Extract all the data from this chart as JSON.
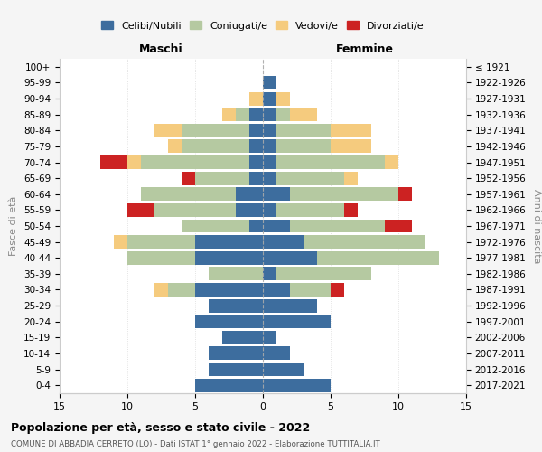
{
  "age_groups": [
    "0-4",
    "5-9",
    "10-14",
    "15-19",
    "20-24",
    "25-29",
    "30-34",
    "35-39",
    "40-44",
    "45-49",
    "50-54",
    "55-59",
    "60-64",
    "65-69",
    "70-74",
    "75-79",
    "80-84",
    "85-89",
    "90-94",
    "95-99",
    "100+"
  ],
  "birth_years": [
    "2017-2021",
    "2012-2016",
    "2007-2011",
    "2002-2006",
    "1997-2001",
    "1992-1996",
    "1987-1991",
    "1982-1986",
    "1977-1981",
    "1972-1976",
    "1967-1971",
    "1962-1966",
    "1957-1961",
    "1952-1956",
    "1947-1951",
    "1942-1946",
    "1937-1941",
    "1932-1936",
    "1927-1931",
    "1922-1926",
    "≤ 1921"
  ],
  "colors": {
    "celibe": "#3d6d9e",
    "coniugato": "#b5c9a1",
    "vedovo": "#f5cb7e",
    "divorziato": "#cc2222"
  },
  "maschi": {
    "celibe": [
      5,
      4,
      4,
      3,
      5,
      4,
      5,
      0,
      5,
      5,
      1,
      2,
      2,
      1,
      1,
      1,
      1,
      1,
      0,
      0,
      0
    ],
    "coniugato": [
      0,
      0,
      0,
      0,
      0,
      0,
      2,
      4,
      5,
      5,
      5,
      6,
      7,
      4,
      8,
      5,
      5,
      1,
      0,
      0,
      0
    ],
    "vedovo": [
      0,
      0,
      0,
      0,
      0,
      0,
      1,
      0,
      0,
      1,
      0,
      0,
      0,
      0,
      1,
      1,
      2,
      1,
      1,
      0,
      0
    ],
    "divorziato": [
      0,
      0,
      0,
      0,
      0,
      0,
      0,
      0,
      0,
      0,
      0,
      2,
      0,
      1,
      2,
      0,
      0,
      0,
      0,
      0,
      0
    ]
  },
  "femmine": {
    "nubile": [
      5,
      3,
      2,
      1,
      5,
      4,
      2,
      1,
      4,
      3,
      2,
      1,
      2,
      1,
      1,
      1,
      1,
      1,
      1,
      1,
      0
    ],
    "coniugata": [
      0,
      0,
      0,
      0,
      0,
      0,
      3,
      7,
      9,
      9,
      7,
      5,
      8,
      5,
      8,
      4,
      4,
      1,
      0,
      0,
      0
    ],
    "vedova": [
      0,
      0,
      0,
      0,
      0,
      0,
      0,
      0,
      0,
      0,
      0,
      0,
      0,
      1,
      1,
      3,
      3,
      2,
      1,
      0,
      0
    ],
    "divorziata": [
      0,
      0,
      0,
      0,
      0,
      0,
      1,
      0,
      0,
      0,
      2,
      1,
      1,
      0,
      0,
      0,
      0,
      0,
      0,
      0,
      0
    ]
  },
  "xlim": 15,
  "title": "Popolazione per età, sesso e stato civile - 2022",
  "subtitle": "COMUNE DI ABBADIA CERRETO (LO) - Dati ISTAT 1° gennaio 2022 - Elaborazione TUTTITALIA.IT",
  "xlabel_maschi": "Maschi",
  "xlabel_femmine": "Femmine",
  "ylabel": "Fasce di età",
  "ylabel_right": "Anni di nascita",
  "legend_labels": [
    "Celibi/Nubili",
    "Coniugati/e",
    "Vedovi/e",
    "Divorziati/e"
  ],
  "bg_color": "#f5f5f5",
  "plot_bg": "#ffffff"
}
